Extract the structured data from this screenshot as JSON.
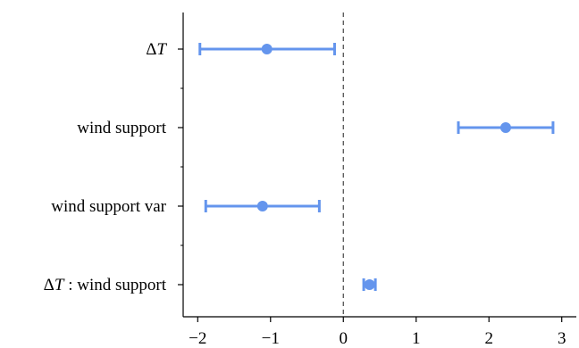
{
  "chart_data": {
    "type": "scatter",
    "subtype": "forest-plot",
    "title": "",
    "xlabel": "",
    "ylabel": "",
    "xlim": [
      -2.2,
      3.2
    ],
    "xticks": [
      -2,
      -1,
      0,
      1,
      2,
      3
    ],
    "xtick_labels": [
      "−2",
      "−1",
      "0",
      "1",
      "2",
      "3"
    ],
    "reference_line": {
      "x": 0,
      "style": "dashed"
    },
    "grid": false,
    "legend": "none",
    "categories": [
      {
        "label_parts": [
          "Δ",
          "T"
        ],
        "estimate": -1.05,
        "lower": -1.97,
        "upper": -0.12
      },
      {
        "label_parts": [
          "wind support"
        ],
        "estimate": 2.23,
        "lower": 1.58,
        "upper": 2.88
      },
      {
        "label_parts": [
          "wind support var"
        ],
        "estimate": -1.11,
        "lower": -1.89,
        "upper": -0.33
      },
      {
        "label_parts": [
          "Δ",
          "T",
          " : wind support"
        ],
        "estimate": 0.36,
        "lower": 0.28,
        "upper": 0.44
      }
    ],
    "colors": {
      "point": "#6495ED",
      "axis": "#000000",
      "reference": "#444444"
    }
  }
}
